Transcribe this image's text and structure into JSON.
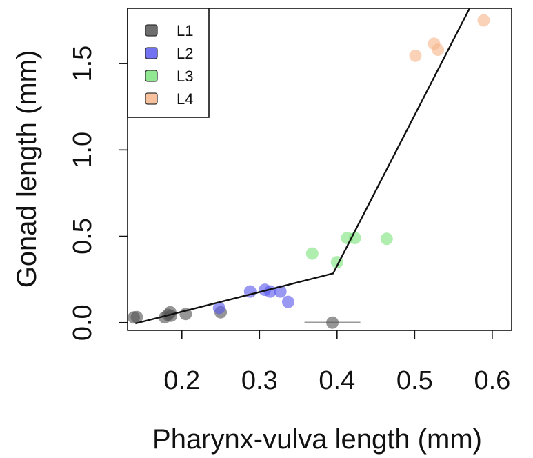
{
  "chart_data": {
    "type": "scatter",
    "xlabel": "Pharynx-vulva length (mm)",
    "ylabel": "Gonad length (mm)",
    "xlim": [
      0.13,
      0.625
    ],
    "ylim": [
      -0.045,
      1.82
    ],
    "xticks": [
      0.2,
      0.3,
      0.4,
      0.5,
      0.6
    ],
    "xtick_labels": [
      "0.2",
      "0.3",
      "0.4",
      "0.5",
      "0.6"
    ],
    "yticks": [
      0.0,
      0.5,
      1.0,
      1.5
    ],
    "ytick_labels": [
      "0.0",
      "0.5",
      "1.0",
      "1.5"
    ],
    "grid": false,
    "legend_position": "top-left",
    "legend": [
      {
        "label": "L1",
        "color": "#555555"
      },
      {
        "label": "L2",
        "color": "#5a5aee"
      },
      {
        "label": "L3",
        "color": "#7fe37f"
      },
      {
        "label": "L4",
        "color": "#f7b68c"
      }
    ],
    "series": [
      {
        "name": "L1",
        "color": "#555555",
        "points": [
          {
            "x": 0.138,
            "y": 0.03
          },
          {
            "x": 0.142,
            "y": 0.032
          },
          {
            "x": 0.178,
            "y": 0.03
          },
          {
            "x": 0.182,
            "y": 0.045
          },
          {
            "x": 0.185,
            "y": 0.06
          },
          {
            "x": 0.186,
            "y": 0.04
          },
          {
            "x": 0.205,
            "y": 0.05
          },
          {
            "x": 0.25,
            "y": 0.06
          },
          {
            "x": 0.394,
            "y": 0.0
          }
        ]
      },
      {
        "name": "L2",
        "color": "#5a5aee",
        "points": [
          {
            "x": 0.248,
            "y": 0.085
          },
          {
            "x": 0.288,
            "y": 0.18
          },
          {
            "x": 0.307,
            "y": 0.19
          },
          {
            "x": 0.314,
            "y": 0.18
          },
          {
            "x": 0.327,
            "y": 0.18
          },
          {
            "x": 0.337,
            "y": 0.12
          }
        ]
      },
      {
        "name": "L3",
        "color": "#7fe37f",
        "points": [
          {
            "x": 0.368,
            "y": 0.4
          },
          {
            "x": 0.4,
            "y": 0.35
          },
          {
            "x": 0.413,
            "y": 0.49
          },
          {
            "x": 0.423,
            "y": 0.49
          },
          {
            "x": 0.464,
            "y": 0.485
          }
        ]
      },
      {
        "name": "L4",
        "color": "#f7b68c",
        "points": [
          {
            "x": 0.501,
            "y": 1.545
          },
          {
            "x": 0.525,
            "y": 1.615
          },
          {
            "x": 0.53,
            "y": 1.58
          },
          {
            "x": 0.589,
            "y": 1.75
          }
        ]
      }
    ],
    "error_bars": [
      {
        "series": "L1",
        "x": 0.394,
        "y": 0.0,
        "xmin": 0.358,
        "xmax": 0.43
      }
    ],
    "fit_line": [
      {
        "x": 0.14,
        "y": -0.005
      },
      {
        "x": 0.395,
        "y": 0.285
      },
      {
        "x": 0.572,
        "y": 1.83
      }
    ]
  }
}
